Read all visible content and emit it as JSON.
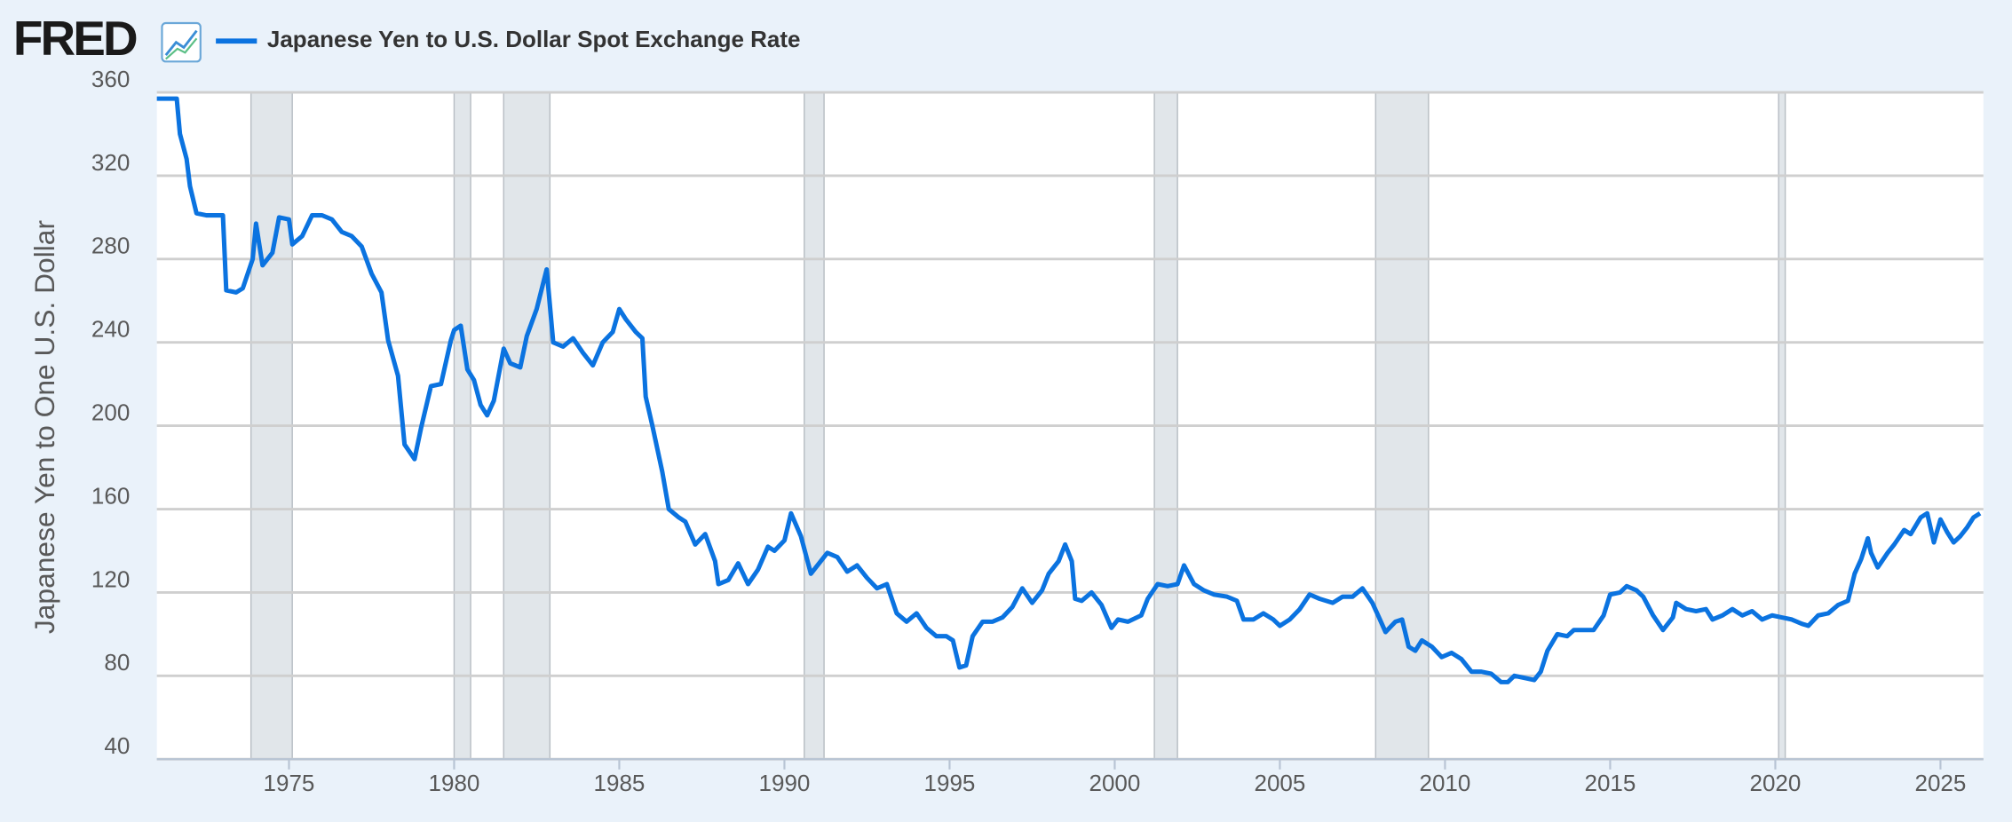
{
  "chart_data": {
    "type": "line",
    "logo": "FRED",
    "y_label": "Japanese Yen to One U.S. Dollar",
    "series": [
      {
        "name": "Japanese Yen to U.S. Dollar Spot Exchange Rate",
        "color": "#0b73e0",
        "x": [
          1971.0,
          1971.6,
          1971.7,
          1971.9,
          1972.0,
          1972.2,
          1972.5,
          1972.7,
          1973.0,
          1973.1,
          1973.4,
          1973.6,
          1973.9,
          1974.0,
          1974.2,
          1974.5,
          1974.7,
          1975.0,
          1975.1,
          1975.4,
          1975.7,
          1976.0,
          1976.3,
          1976.6,
          1976.9,
          1977.2,
          1977.5,
          1977.8,
          1978.0,
          1978.3,
          1978.5,
          1978.8,
          1979.0,
          1979.3,
          1979.6,
          1979.9,
          1980.0,
          1980.2,
          1980.4,
          1980.6,
          1980.8,
          1981.0,
          1981.2,
          1981.5,
          1981.7,
          1982.0,
          1982.2,
          1982.5,
          1982.8,
          1983.0,
          1983.3,
          1983.6,
          1983.9,
          1984.2,
          1984.5,
          1984.8,
          1985.0,
          1985.2,
          1985.5,
          1985.7,
          1985.8,
          1986.0,
          1986.3,
          1986.5,
          1986.8,
          1987.0,
          1987.3,
          1987.6,
          1987.9,
          1988.0,
          1988.3,
          1988.6,
          1988.9,
          1989.2,
          1989.5,
          1989.7,
          1990.0,
          1990.2,
          1990.5,
          1990.8,
          1991.0,
          1991.3,
          1991.6,
          1991.9,
          1992.2,
          1992.5,
          1992.8,
          1993.1,
          1993.4,
          1993.7,
          1994.0,
          1994.3,
          1994.6,
          1994.9,
          1995.1,
          1995.3,
          1995.5,
          1995.7,
          1996.0,
          1996.3,
          1996.6,
          1996.9,
          1997.2,
          1997.5,
          1997.8,
          1998.0,
          1998.3,
          1998.5,
          1998.7,
          1998.8,
          1999.0,
          1999.3,
          1999.6,
          1999.9,
          2000.1,
          2000.4,
          2000.8,
          2001.0,
          2001.3,
          2001.6,
          2001.9,
          2002.1,
          2002.4,
          2002.7,
          2003.0,
          2003.4,
          2003.7,
          2003.9,
          2004.2,
          2004.5,
          2004.8,
          2005.0,
          2005.3,
          2005.6,
          2005.9,
          2006.2,
          2006.6,
          2006.9,
          2007.2,
          2007.5,
          2007.8,
          2008.0,
          2008.2,
          2008.5,
          2008.7,
          2008.9,
          2009.1,
          2009.3,
          2009.6,
          2009.9,
          2010.2,
          2010.5,
          2010.8,
          2011.1,
          2011.4,
          2011.7,
          2011.9,
          2012.1,
          2012.4,
          2012.7,
          2012.9,
          2013.1,
          2013.4,
          2013.7,
          2013.9,
          2014.2,
          2014.5,
          2014.8,
          2015.0,
          2015.3,
          2015.5,
          2015.8,
          2016.0,
          2016.3,
          2016.6,
          2016.9,
          2017.0,
          2017.3,
          2017.6,
          2017.9,
          2018.1,
          2018.4,
          2018.7,
          2019.0,
          2019.3,
          2019.6,
          2019.9,
          2020.2,
          2020.5,
          2020.8,
          2021.0,
          2021.3,
          2021.6,
          2021.9,
          2022.2,
          2022.4,
          2022.6,
          2022.8,
          2022.9,
          2023.1,
          2023.4,
          2023.6,
          2023.9,
          2024.1,
          2024.4,
          2024.6,
          2024.8,
          2025.0,
          2025.2,
          2025.4,
          2025.6,
          2025.8,
          2026.0,
          2026.2
        ],
        "values": [
          357,
          357,
          340,
          328,
          315,
          302,
          301,
          301,
          301,
          265,
          264,
          266,
          280,
          297,
          277,
          283,
          300,
          299,
          287,
          291,
          301,
          301,
          299,
          293,
          291,
          286,
          273,
          264,
          241,
          224,
          191,
          184,
          199,
          219,
          220,
          241,
          246,
          248,
          227,
          222,
          210,
          205,
          212,
          237,
          230,
          228,
          243,
          256,
          275,
          240,
          238,
          242,
          235,
          229,
          240,
          245,
          256,
          251,
          245,
          242,
          214,
          200,
          178,
          160,
          156,
          154,
          143,
          148,
          135,
          124,
          126,
          134,
          124,
          131,
          142,
          140,
          145,
          158,
          147,
          129,
          133,
          139,
          137,
          130,
          133,
          127,
          122,
          124,
          110,
          106,
          110,
          103,
          99,
          99,
          97,
          84,
          85,
          99,
          106,
          106,
          108,
          113,
          122,
          115,
          121,
          129,
          135,
          143,
          135,
          117,
          116,
          120,
          114,
          103,
          107,
          106,
          109,
          117,
          124,
          123,
          124,
          133,
          124,
          121,
          119,
          118,
          116,
          107,
          107,
          110,
          107,
          104,
          107,
          112,
          119,
          117,
          115,
          118,
          118,
          122,
          115,
          108,
          101,
          106,
          107,
          94,
          92,
          97,
          94,
          89,
          91,
          88,
          82,
          82,
          81,
          77,
          77,
          80,
          79,
          78,
          82,
          92,
          100,
          99,
          102,
          102,
          102,
          109,
          119,
          120,
          123,
          121,
          118,
          109,
          102,
          108,
          115,
          112,
          111,
          112,
          107,
          109,
          112,
          109,
          111,
          107,
          109,
          108,
          107,
          105,
          104,
          109,
          110,
          114,
          116,
          129,
          136,
          146,
          139,
          132,
          139,
          143,
          150,
          148,
          156,
          158,
          144,
          155,
          149,
          144,
          147,
          151,
          156,
          158
        ]
      }
    ],
    "recessions": [
      [
        1973.85,
        1975.1
      ],
      [
        1980.0,
        1980.5
      ],
      [
        1981.5,
        1982.9
      ],
      [
        1990.6,
        1991.2
      ],
      [
        2001.2,
        2001.9
      ],
      [
        2007.9,
        2009.5
      ],
      [
        2020.1,
        2020.3
      ]
    ],
    "recession_color": "#e1e6ea",
    "xlim": [
      1971.0,
      2026.3
    ],
    "xticks": [
      1975,
      1980,
      1985,
      1990,
      1995,
      2000,
      2005,
      2010,
      2015,
      2020,
      2025
    ],
    "ylim": [
      40,
      360
    ],
    "yticks": [
      40,
      80,
      120,
      160,
      200,
      240,
      280,
      320,
      360
    ],
    "grid": true
  }
}
